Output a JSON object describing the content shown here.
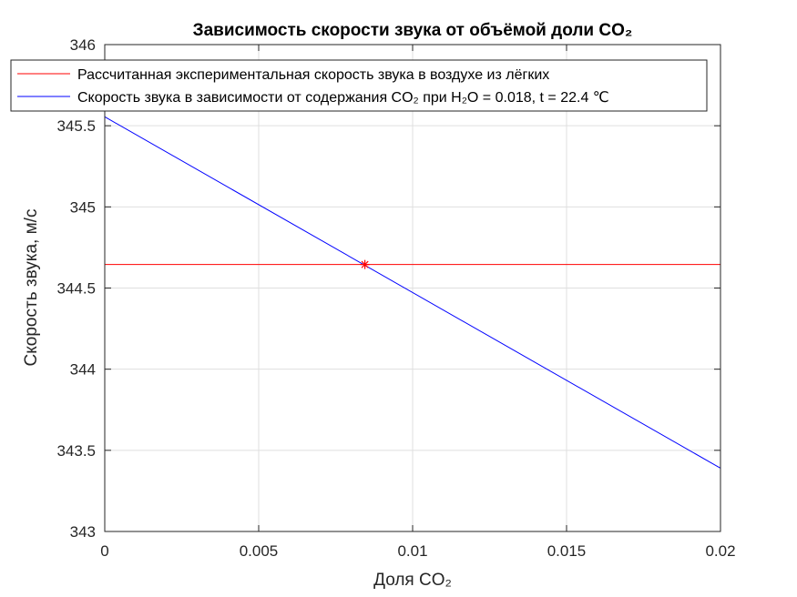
{
  "chart_data": {
    "type": "line",
    "title": "Зависимость скорости звука от объёмой доли CO₂",
    "xlabel": "Доля CO₂",
    "ylabel": "Скорость звука, м/с",
    "xlim": [
      0,
      0.02
    ],
    "ylim": [
      343,
      346
    ],
    "x_ticks": [
      0,
      0.005,
      0.01,
      0.015,
      0.02
    ],
    "x_tick_labels": [
      "0",
      "0.005",
      "0.01",
      "0.015",
      "0.02"
    ],
    "y_ticks": [
      343,
      343.5,
      344,
      344.5,
      345,
      345.5,
      346
    ],
    "y_tick_labels": [
      "343",
      "343.5",
      "344",
      "344.5",
      "345",
      "345.5",
      "346"
    ],
    "grid": true,
    "legend_position": "top",
    "series": [
      {
        "name": "Рассчитанная экспериментальная скорость звука в воздухе из лёгких",
        "color": "#ff0000",
        "x": [
          0,
          0.02
        ],
        "y": [
          344.645,
          344.645
        ]
      },
      {
        "name": "Скорость звука в зависимости от содержания CO₂ при H₂O = 0.018, t = 22.4 ℃",
        "color": "#0000ff",
        "x": [
          0,
          0.02
        ],
        "y": [
          345.555,
          343.39
        ]
      }
    ],
    "markers": [
      {
        "x": 0.00845,
        "y": 344.645,
        "symbol": "*",
        "color": "#ff0000"
      }
    ]
  }
}
